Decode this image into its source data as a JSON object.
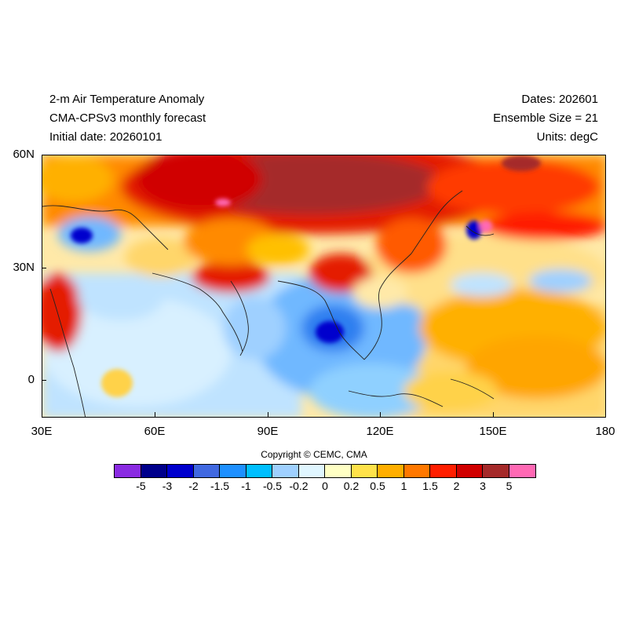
{
  "header": {
    "title_left_1": "2-m Air Temperature Anomaly",
    "title_left_2": "CMA-CPSv3 monthly forecast",
    "title_left_3": "Initial date: 20260101",
    "title_right_1": "Dates: 202601",
    "title_right_2": "Ensemble Size = 21",
    "title_right_3": "Units: degC"
  },
  "map": {
    "lon_range": [
      30,
      180
    ],
    "lat_range": [
      -10,
      60
    ],
    "lat_labels": [
      "60N",
      "30N",
      "0"
    ],
    "lon_labels": [
      "30E",
      "60E",
      "90E",
      "120E",
      "150E",
      "180"
    ]
  },
  "colorbar": {
    "colors": [
      "#8a2be2",
      "#00008b",
      "#0000cd",
      "#4169e1",
      "#1e90ff",
      "#00bfff",
      "#9fd0ff",
      "#e0f6ff",
      "#ffffc4",
      "#ffe24a",
      "#ffae00",
      "#ff7800",
      "#ff1e00",
      "#d00000",
      "#a52a2a",
      "#ff69b4"
    ],
    "labels": [
      "-5",
      "-3",
      "-2",
      "-1.5",
      "-1",
      "-0.5",
      "-0.2",
      "0",
      "0.2",
      "0.5",
      "1",
      "1.5",
      "2",
      "3",
      "5"
    ]
  },
  "copyright": "Copyright © CEMC, CMA"
}
